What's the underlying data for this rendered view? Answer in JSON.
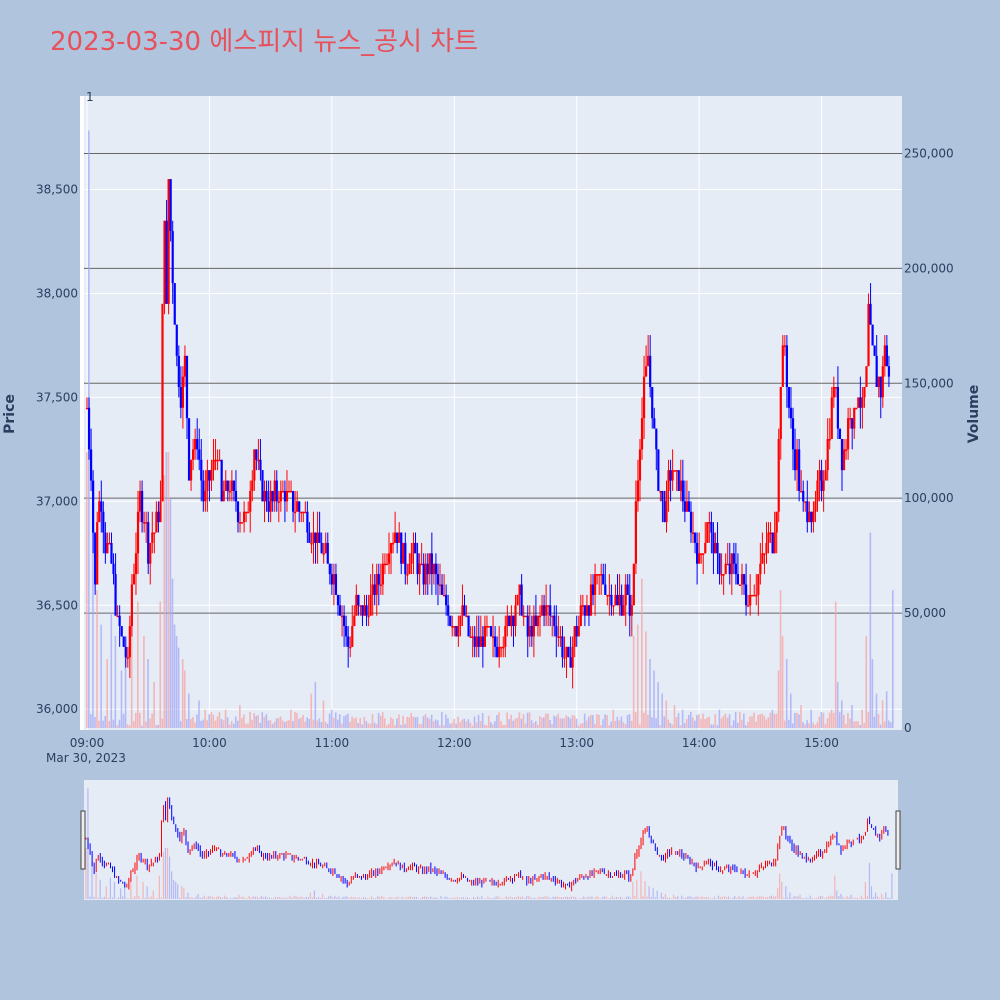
{
  "chart_data": {
    "type": "candlestick",
    "title": "2023-03-30 에스피지 뉴스_공시 차트",
    "date_label": "Mar 30, 2023",
    "y_axis_title": "Price",
    "y2_axis_title": "Volume",
    "x_ticks": [
      "09:00",
      "10:00",
      "11:00",
      "12:00",
      "13:00",
      "14:00",
      "15:00"
    ],
    "y_ticks": [
      "36,000",
      "36,500",
      "37,000",
      "37,500",
      "38,000",
      "38,500"
    ],
    "y2_ticks": [
      "0",
      "50,000",
      "100,000",
      "150,000",
      "200,000",
      "250,000"
    ],
    "annotation": "1",
    "ylim": [
      35900,
      38950
    ],
    "volume_ylim": [
      0,
      275000
    ],
    "x_range_minutes": [
      0,
      395
    ],
    "colors": {
      "up": "#ff0000",
      "down": "#0000ff",
      "plot_bg": "#e5ecf6",
      "page_bg": "#b0c4de",
      "title": "#e8505b",
      "hline": "#666666"
    },
    "volume_hlines": [
      50000,
      100000,
      150000,
      200000,
      250000
    ],
    "price_key_points": [
      [
        0,
        37450
      ],
      [
        2,
        37150
      ],
      [
        4,
        36600
      ],
      [
        5,
        36950
      ],
      [
        7,
        37000
      ],
      [
        9,
        36800
      ],
      [
        12,
        36700
      ],
      [
        15,
        36400
      ],
      [
        18,
        36300
      ],
      [
        20,
        36200
      ],
      [
        22,
        36600
      ],
      [
        24,
        36800
      ],
      [
        26,
        37000
      ],
      [
        28,
        36950
      ],
      [
        30,
        36750
      ],
      [
        32,
        36850
      ],
      [
        34,
        36900
      ],
      [
        36,
        37000
      ],
      [
        37,
        37900
      ],
      [
        38,
        38400
      ],
      [
        39,
        37900
      ],
      [
        40,
        38550
      ],
      [
        42,
        38100
      ],
      [
        44,
        37700
      ],
      [
        46,
        37500
      ],
      [
        48,
        37650
      ],
      [
        50,
        37150
      ],
      [
        52,
        37250
      ],
      [
        54,
        37300
      ],
      [
        57,
        37000
      ],
      [
        60,
        37100
      ],
      [
        62,
        37150
      ],
      [
        64,
        37250
      ],
      [
        66,
        37000
      ],
      [
        70,
        37100
      ],
      [
        74,
        36950
      ],
      [
        78,
        36900
      ],
      [
        82,
        37250
      ],
      [
        86,
        37050
      ],
      [
        90,
        37000
      ],
      [
        94,
        37050
      ],
      [
        100,
        37000
      ],
      [
        105,
        36950
      ],
      [
        110,
        36850
      ],
      [
        114,
        36800
      ],
      [
        118,
        36700
      ],
      [
        122,
        36600
      ],
      [
        126,
        36400
      ],
      [
        128,
        36300
      ],
      [
        132,
        36500
      ],
      [
        136,
        36450
      ],
      [
        140,
        36550
      ],
      [
        144,
        36650
      ],
      [
        148,
        36800
      ],
      [
        152,
        36850
      ],
      [
        156,
        36700
      ],
      [
        160,
        36750
      ],
      [
        164,
        36650
      ],
      [
        168,
        36700
      ],
      [
        172,
        36600
      ],
      [
        176,
        36500
      ],
      [
        180,
        36400
      ],
      [
        184,
        36450
      ],
      [
        188,
        36350
      ],
      [
        192,
        36300
      ],
      [
        196,
        36350
      ],
      [
        200,
        36300
      ],
      [
        204,
        36350
      ],
      [
        208,
        36450
      ],
      [
        212,
        36550
      ],
      [
        216,
        36350
      ],
      [
        220,
        36400
      ],
      [
        224,
        36500
      ],
      [
        228,
        36450
      ],
      [
        232,
        36350
      ],
      [
        236,
        36200
      ],
      [
        240,
        36400
      ],
      [
        244,
        36500
      ],
      [
        248,
        36550
      ],
      [
        252,
        36650
      ],
      [
        256,
        36550
      ],
      [
        260,
        36500
      ],
      [
        264,
        36550
      ],
      [
        267,
        36450
      ],
      [
        269,
        37000
      ],
      [
        271,
        37300
      ],
      [
        273,
        37550
      ],
      [
        275,
        37700
      ],
      [
        277,
        37450
      ],
      [
        279,
        37200
      ],
      [
        281,
        37050
      ],
      [
        283,
        36950
      ],
      [
        286,
        37150
      ],
      [
        290,
        37100
      ],
      [
        294,
        36950
      ],
      [
        298,
        36800
      ],
      [
        300,
        36700
      ],
      [
        304,
        36900
      ],
      [
        308,
        36750
      ],
      [
        312,
        36650
      ],
      [
        316,
        36700
      ],
      [
        320,
        36600
      ],
      [
        324,
        36550
      ],
      [
        328,
        36600
      ],
      [
        332,
        36750
      ],
      [
        334,
        36850
      ],
      [
        336,
        36800
      ],
      [
        338,
        37000
      ],
      [
        340,
        37600
      ],
      [
        342,
        37750
      ],
      [
        344,
        37450
      ],
      [
        346,
        37250
      ],
      [
        348,
        37200
      ],
      [
        350,
        37000
      ],
      [
        352,
        36950
      ],
      [
        354,
        37000
      ],
      [
        356,
        36900
      ],
      [
        358,
        37050
      ],
      [
        360,
        37100
      ],
      [
        362,
        37200
      ],
      [
        364,
        37350
      ],
      [
        366,
        37600
      ],
      [
        368,
        37400
      ],
      [
        370,
        37200
      ],
      [
        372,
        37300
      ],
      [
        374,
        37450
      ],
      [
        376,
        37400
      ],
      [
        378,
        37550
      ],
      [
        380,
        37450
      ],
      [
        382,
        37600
      ],
      [
        383,
        37900
      ],
      [
        385,
        37700
      ],
      [
        387,
        37600
      ],
      [
        389,
        37550
      ],
      [
        391,
        37750
      ],
      [
        393,
        37600
      ]
    ],
    "volume_spikes": [
      [
        0,
        120000
      ],
      [
        1,
        260000
      ],
      [
        3,
        90000
      ],
      [
        5,
        60000
      ],
      [
        7,
        45000
      ],
      [
        10,
        30000
      ],
      [
        12,
        50000
      ],
      [
        14,
        40000
      ],
      [
        17,
        25000
      ],
      [
        19,
        35000
      ],
      [
        22,
        45000
      ],
      [
        25,
        55000
      ],
      [
        28,
        40000
      ],
      [
        30,
        30000
      ],
      [
        33,
        20000
      ],
      [
        36,
        55000
      ],
      [
        38,
        110000
      ],
      [
        39,
        120000
      ],
      [
        40,
        120000
      ],
      [
        41,
        100000
      ],
      [
        42,
        65000
      ],
      [
        43,
        45000
      ],
      [
        44,
        40000
      ],
      [
        45,
        35000
      ],
      [
        47,
        30000
      ],
      [
        48,
        25000
      ],
      [
        50,
        15000
      ],
      [
        55,
        12000
      ],
      [
        58,
        8000
      ],
      [
        60,
        6000
      ],
      [
        64,
        5000
      ],
      [
        68,
        8000
      ],
      [
        75,
        10000
      ],
      [
        80,
        7000
      ],
      [
        88,
        6000
      ],
      [
        95,
        5000
      ],
      [
        100,
        8000
      ],
      [
        110,
        15000
      ],
      [
        112,
        20000
      ],
      [
        116,
        12000
      ],
      [
        120,
        8000
      ],
      [
        124,
        6000
      ],
      [
        130,
        5000
      ],
      [
        140,
        6000
      ],
      [
        150,
        4000
      ],
      [
        160,
        5000
      ],
      [
        170,
        3000
      ],
      [
        180,
        4000
      ],
      [
        190,
        5000
      ],
      [
        200,
        3000
      ],
      [
        210,
        4000
      ],
      [
        220,
        3000
      ],
      [
        230,
        5000
      ],
      [
        240,
        4000
      ],
      [
        250,
        6000
      ],
      [
        258,
        8000
      ],
      [
        262,
        5000
      ],
      [
        266,
        6000
      ],
      [
        268,
        40000
      ],
      [
        270,
        45000
      ],
      [
        272,
        65000
      ],
      [
        274,
        42000
      ],
      [
        276,
        30000
      ],
      [
        278,
        25000
      ],
      [
        280,
        20000
      ],
      [
        282,
        15000
      ],
      [
        284,
        12000
      ],
      [
        288,
        10000
      ],
      [
        292,
        8000
      ],
      [
        296,
        7000
      ],
      [
        300,
        6000
      ],
      [
        305,
        5000
      ],
      [
        310,
        8000
      ],
      [
        315,
        6000
      ],
      [
        320,
        7000
      ],
      [
        325,
        5000
      ],
      [
        330,
        6000
      ],
      [
        336,
        8000
      ],
      [
        339,
        25000
      ],
      [
        340,
        60000
      ],
      [
        341,
        40000
      ],
      [
        343,
        30000
      ],
      [
        345,
        15000
      ],
      [
        350,
        10000
      ],
      [
        355,
        8000
      ],
      [
        360,
        7000
      ],
      [
        365,
        8000
      ],
      [
        367,
        55000
      ],
      [
        368,
        20000
      ],
      [
        370,
        12000
      ],
      [
        375,
        10000
      ],
      [
        380,
        8000
      ],
      [
        382,
        40000
      ],
      [
        384,
        85000
      ],
      [
        385,
        30000
      ],
      [
        387,
        15000
      ],
      [
        390,
        12000
      ],
      [
        392,
        16000
      ],
      [
        395,
        60000
      ]
    ]
  }
}
